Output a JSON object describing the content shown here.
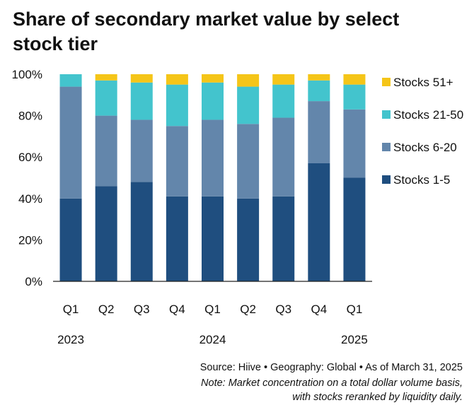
{
  "title": "Share of secondary market value by select stock tier",
  "source_line": "Source: Hiive  •  Geography: Global  •  As of March 31, 2025",
  "note_line_1": "Note: Market concentration on a total dollar volume basis,",
  "note_line_2": "with stocks reranked by liquidity daily.",
  "colors": {
    "stocks_1_5": "#1f4e7f",
    "stocks_6_20": "#6386ab",
    "stocks_21_50": "#43c4cd",
    "stocks_51_plus": "#f5c518"
  },
  "chart_data": {
    "type": "bar",
    "stacked": true,
    "categories": [
      "Q1",
      "Q2",
      "Q3",
      "Q4",
      "Q1",
      "Q2",
      "Q3",
      "Q4",
      "Q1"
    ],
    "year_labels": [
      {
        "label": "2023",
        "category_index": 0
      },
      {
        "label": "2024",
        "category_index": 4
      },
      {
        "label": "2025",
        "category_index": 8
      }
    ],
    "ylim": [
      0,
      100
    ],
    "yticks": [
      "0%",
      "20%",
      "40%",
      "60%",
      "80%",
      "100%"
    ],
    "grid": false,
    "legend_position": "right",
    "series": [
      {
        "name": "Stocks 1-5",
        "color": "#1f4e7f",
        "values": [
          40,
          46,
          48,
          41,
          41,
          40,
          41,
          57,
          50
        ]
      },
      {
        "name": "Stocks 6-20",
        "color": "#6386ab",
        "values": [
          54,
          34,
          30,
          34,
          37,
          36,
          38,
          30,
          33
        ]
      },
      {
        "name": "Stocks 21-50",
        "color": "#43c4cd",
        "values": [
          6,
          17,
          18,
          20,
          18,
          18,
          16,
          10,
          12
        ]
      },
      {
        "name": "Stocks 51+",
        "color": "#f5c518",
        "values": [
          0,
          3,
          4,
          5,
          4,
          6,
          5,
          3,
          5
        ]
      }
    ]
  }
}
